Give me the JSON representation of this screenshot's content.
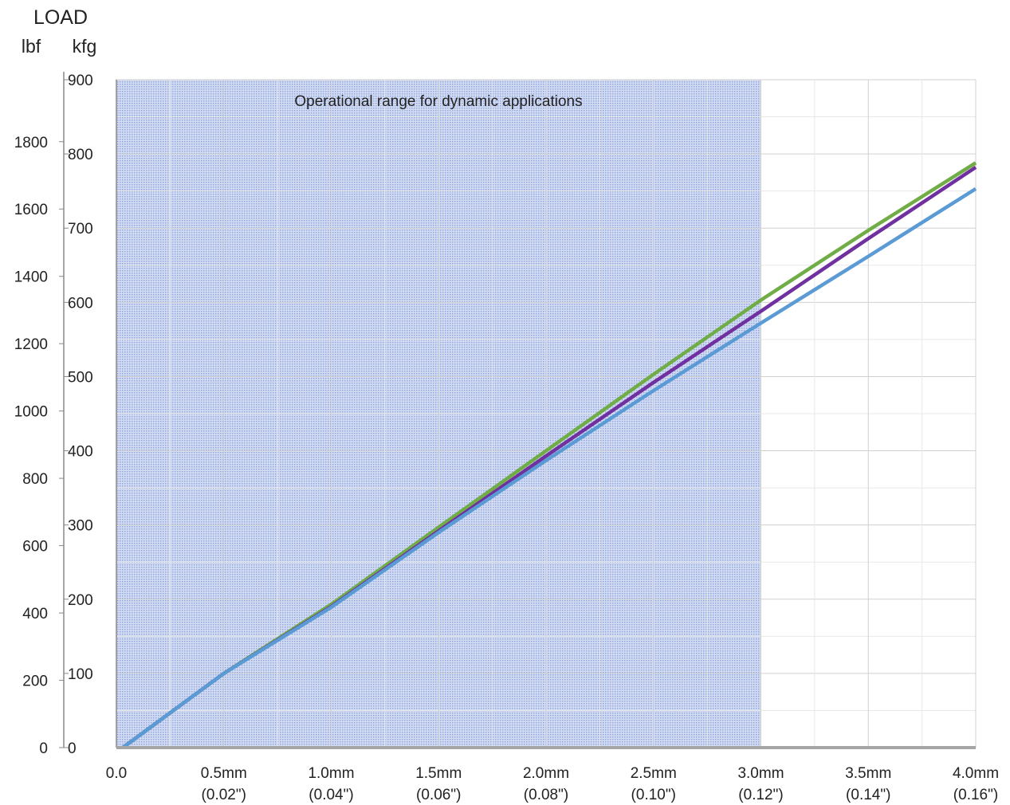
{
  "chart_data": {
    "type": "line",
    "title": "",
    "ylabel": "LOAD",
    "y_units_left": "lbf",
    "y_units_right": "kfg",
    "annotation": "Operational range for dynamic applications",
    "x_range_mm": [
      0,
      4.0
    ],
    "x_ticks": [
      {
        "x": 0.0,
        "label": "0.0",
        "sub": ""
      },
      {
        "x": 0.5,
        "label": "0.5mm",
        "sub": "(0.02\")"
      },
      {
        "x": 1.0,
        "label": "1.0mm",
        "sub": "(0.04\")"
      },
      {
        "x": 1.5,
        "label": "1.5mm",
        "sub": "(0.06\")"
      },
      {
        "x": 2.0,
        "label": "2.0mm",
        "sub": "(0.08\")"
      },
      {
        "x": 2.5,
        "label": "2.5mm",
        "sub": "(0.10\")"
      },
      {
        "x": 3.0,
        "label": "3.0mm",
        "sub": "(0.12\")"
      },
      {
        "x": 3.5,
        "label": "3.5mm",
        "sub": "(0.14\")"
      },
      {
        "x": 4.0,
        "label": "4.0mm",
        "sub": "(0.16\")"
      }
    ],
    "ylim_kgf": [
      0,
      900
    ],
    "y_ticks_kgf": [
      0,
      100,
      200,
      300,
      400,
      500,
      600,
      700,
      800,
      900
    ],
    "y_ticks_lbf": [
      0,
      200,
      400,
      600,
      800,
      1000,
      1200,
      1400,
      1600,
      1800
    ],
    "shaded_region_mm": [
      0,
      3.0
    ],
    "grid": true,
    "series": [
      {
        "color": "#70ad47",
        "x": [
          0.03,
          0.5,
          1.0,
          1.5,
          2.0,
          2.5,
          3.0,
          3.5,
          4.0
        ],
        "y": [
          0,
          100,
          193,
          297,
          400,
          503,
          603,
          697,
          788
        ]
      },
      {
        "color": "#7030a0",
        "x": [
          0.03,
          0.5,
          1.0,
          1.5,
          2.0,
          2.5,
          3.0,
          3.5,
          4.0
        ],
        "y": [
          0,
          100,
          190,
          292,
          393,
          492,
          588,
          686,
          782
        ]
      },
      {
        "color": "#5b9bd5",
        "x": [
          0.03,
          0.5,
          1.0,
          1.5,
          2.0,
          2.5,
          3.0,
          3.5,
          4.0
        ],
        "y": [
          0,
          100,
          189,
          290,
          387,
          481,
          572,
          662,
          753
        ]
      },
      {
        "color": "#a5a5a5",
        "x": [
          0.0,
          4.0
        ],
        "y": [
          0,
          0
        ]
      }
    ]
  }
}
